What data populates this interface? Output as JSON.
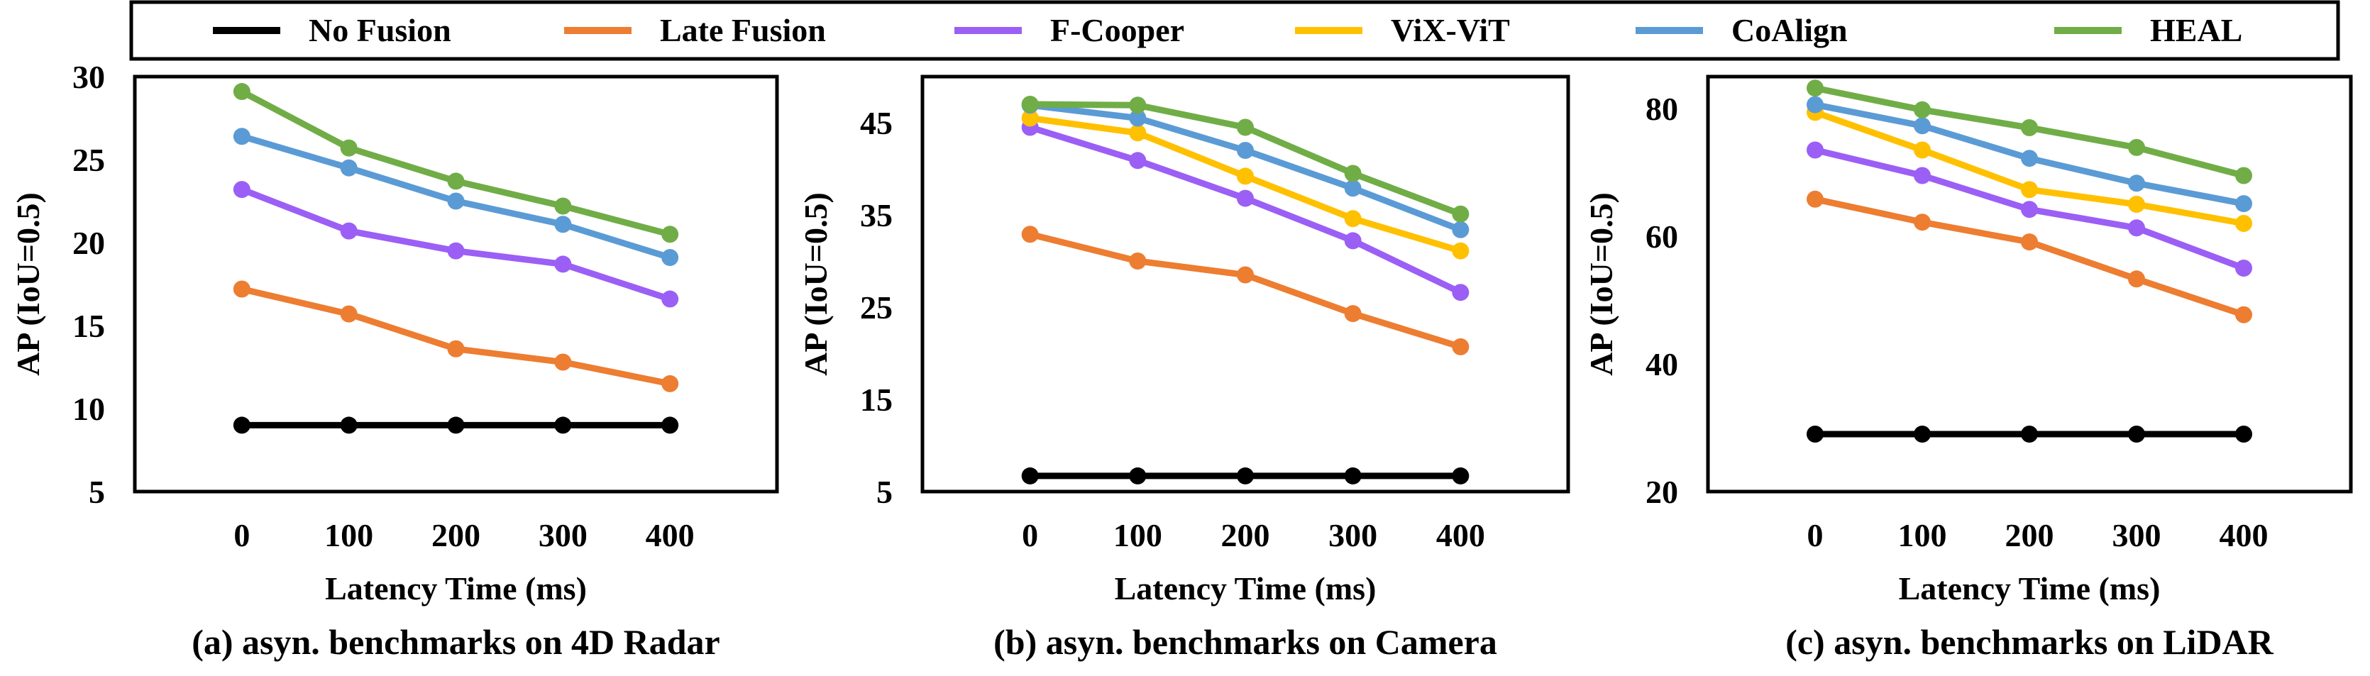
{
  "legend": [
    {
      "name": "No Fusion",
      "color": "#000000"
    },
    {
      "name": "Late Fusion",
      "color": "#ED7D31"
    },
    {
      "name": "F-Cooper",
      "color": "#9B5FF5"
    },
    {
      "name": "ViX-ViT",
      "color": "#FFC000"
    },
    {
      "name": "CoAlign",
      "color": "#5B9BD5"
    },
    {
      "name": "HEAL",
      "color": "#70AD47"
    }
  ],
  "chart_data": [
    {
      "type": "line",
      "caption": "(a) asyn. benchmarks on 4D Radar",
      "xlabel": "Latency Time (ms)",
      "ylabel": "AP (IoU=0.5)",
      "x": [
        0,
        100,
        200,
        300,
        400
      ],
      "xticks": [
        "0",
        "100",
        "200",
        "300",
        "400"
      ],
      "ylim": [
        5,
        30
      ],
      "yticks": [
        5,
        10,
        15,
        20,
        25,
        30
      ],
      "grid": false,
      "series": [
        {
          "name": "No Fusion",
          "values": [
            9.0,
            9.0,
            9.0,
            9.0,
            9.0
          ]
        },
        {
          "name": "Late Fusion",
          "values": [
            17.2,
            15.7,
            13.6,
            12.8,
            11.5
          ]
        },
        {
          "name": "F-Cooper",
          "values": [
            23.2,
            20.7,
            19.5,
            18.7,
            16.6
          ]
        },
        {
          "name": "CoAlign",
          "values": [
            26.4,
            24.5,
            22.5,
            21.1,
            19.1
          ]
        },
        {
          "name": "HEAL",
          "values": [
            29.1,
            25.7,
            23.7,
            22.2,
            20.5
          ]
        }
      ]
    },
    {
      "type": "line",
      "caption": "(b) asyn. benchmarks on Camera",
      "xlabel": "Latency Time (ms)",
      "ylabel": "AP (IoU=0.5)",
      "x": [
        0,
        100,
        200,
        300,
        400
      ],
      "xticks": [
        "0",
        "100",
        "200",
        "300",
        "400"
      ],
      "ylim": [
        5,
        50
      ],
      "yticks": [
        5,
        15,
        25,
        35,
        45
      ],
      "grid": false,
      "series": [
        {
          "name": "No Fusion",
          "values": [
            6.7,
            6.7,
            6.7,
            6.7,
            6.7
          ]
        },
        {
          "name": "Late Fusion",
          "values": [
            32.9,
            30.0,
            28.5,
            24.3,
            20.7
          ]
        },
        {
          "name": "F-Cooper",
          "values": [
            44.5,
            40.9,
            36.8,
            32.2,
            26.6
          ]
        },
        {
          "name": "ViX-ViT",
          "values": [
            45.5,
            43.9,
            39.2,
            34.6,
            31.1
          ]
        },
        {
          "name": "CoAlign",
          "values": [
            46.9,
            45.5,
            42.0,
            37.9,
            33.4
          ]
        },
        {
          "name": "HEAL",
          "values": [
            47.0,
            46.9,
            44.5,
            39.5,
            35.1
          ]
        }
      ]
    },
    {
      "type": "line",
      "caption": "(c) asyn. benchmarks on LiDAR",
      "xlabel": "Latency Time (ms)",
      "ylabel": "AP (IoU=0.5)",
      "x": [
        0,
        100,
        200,
        300,
        400
      ],
      "xticks": [
        "0",
        "100",
        "200",
        "300",
        "400"
      ],
      "ylim": [
        20,
        85
      ],
      "yticks": [
        20,
        40,
        60,
        80
      ],
      "grid": false,
      "series": [
        {
          "name": "No Fusion",
          "values": [
            29.0,
            29.0,
            29.0,
            29.0,
            29.0
          ]
        },
        {
          "name": "Late Fusion",
          "values": [
            65.8,
            62.2,
            59.1,
            53.3,
            47.7
          ]
        },
        {
          "name": "F-Cooper",
          "values": [
            73.5,
            69.5,
            64.2,
            61.3,
            55.0
          ]
        },
        {
          "name": "ViX-ViT",
          "values": [
            79.4,
            73.5,
            67.3,
            65.0,
            62.0
          ]
        },
        {
          "name": "CoAlign",
          "values": [
            80.6,
            77.3,
            72.2,
            68.3,
            65.1
          ]
        },
        {
          "name": "HEAL",
          "values": [
            83.2,
            79.8,
            77.0,
            73.9,
            69.5
          ]
        }
      ]
    }
  ]
}
